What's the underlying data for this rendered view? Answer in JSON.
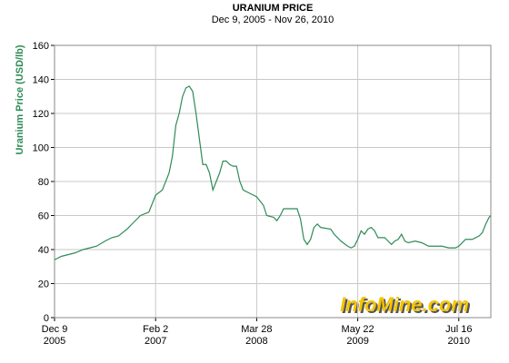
{
  "chart_data": {
    "type": "line",
    "title": "URANIUM PRICE",
    "subtitle": "Dec 9, 2005 - Nov 26, 2010",
    "y_label": "Uranium Price (USD/lb)",
    "watermark": "InfoMine.com",
    "grid": true,
    "xlim": [
      "2005-12-09",
      "2010-11-26"
    ],
    "xticks": [
      {
        "value": "2005-12-09",
        "label": [
          "Dec 9",
          "2005"
        ]
      },
      {
        "value": "2007-02-02",
        "label": [
          "Feb 2",
          "2007"
        ]
      },
      {
        "value": "2008-03-28",
        "label": [
          "Mar 28",
          "2008"
        ]
      },
      {
        "value": "2009-05-22",
        "label": [
          "May 22",
          "2009"
        ]
      },
      {
        "value": "2010-07-16",
        "label": [
          "Jul 16",
          "2010"
        ]
      }
    ],
    "ylim": [
      0,
      160
    ],
    "yticks": [
      0,
      20,
      40,
      60,
      80,
      100,
      120,
      140,
      160
    ],
    "series": [
      {
        "color": "#2e8b57",
        "x": [
          "2005-12-09",
          "2006-01-06",
          "2006-02-03",
          "2006-03-03",
          "2006-04-07",
          "2006-05-05",
          "2006-06-02",
          "2006-07-07",
          "2006-08-04",
          "2006-09-01",
          "2006-10-06",
          "2006-11-03",
          "2006-12-01",
          "2007-01-05",
          "2007-02-02",
          "2007-03-02",
          "2007-03-30",
          "2007-04-13",
          "2007-04-27",
          "2007-05-11",
          "2007-05-25",
          "2007-06-08",
          "2007-06-22",
          "2007-07-06",
          "2007-07-20",
          "2007-08-03",
          "2007-08-17",
          "2007-08-31",
          "2007-09-14",
          "2007-09-28",
          "2007-10-12",
          "2007-10-26",
          "2007-11-09",
          "2007-11-23",
          "2007-12-07",
          "2007-12-21",
          "2008-01-04",
          "2008-01-18",
          "2008-02-01",
          "2008-02-29",
          "2008-03-28",
          "2008-04-25",
          "2008-05-09",
          "2008-06-06",
          "2008-06-20",
          "2008-07-04",
          "2008-07-18",
          "2008-08-29",
          "2008-09-12",
          "2008-09-26",
          "2008-10-10",
          "2008-10-24",
          "2008-11-07",
          "2008-11-21",
          "2008-12-05",
          "2008-12-19",
          "2009-01-30",
          "2009-02-13",
          "2009-03-13",
          "2009-04-10",
          "2009-04-24",
          "2009-05-08",
          "2009-05-22",
          "2009-06-05",
          "2009-06-19",
          "2009-07-03",
          "2009-07-17",
          "2009-07-31",
          "2009-08-14",
          "2009-09-11",
          "2009-09-25",
          "2009-10-09",
          "2009-10-23",
          "2009-11-06",
          "2009-11-20",
          "2009-12-04",
          "2009-12-18",
          "2010-01-15",
          "2010-02-12",
          "2010-03-12",
          "2010-04-09",
          "2010-05-07",
          "2010-06-04",
          "2010-07-02",
          "2010-07-16",
          "2010-08-13",
          "2010-09-10",
          "2010-10-08",
          "2010-10-22",
          "2010-11-05",
          "2010-11-19",
          "2010-11-26"
        ],
        "values": [
          34,
          36,
          37,
          38,
          40,
          41,
          42,
          45,
          47,
          48,
          52,
          56,
          60,
          62,
          72,
          75,
          85,
          95,
          113,
          120,
          130,
          135,
          136,
          133,
          120,
          105,
          90,
          90,
          85,
          75,
          80,
          85,
          92,
          92,
          90,
          89,
          89,
          80,
          75,
          73,
          71,
          66,
          60,
          59,
          57,
          60,
          64,
          64,
          64,
          58,
          46,
          43,
          46,
          53,
          55,
          53,
          52,
          49,
          45,
          42,
          41,
          42,
          46,
          51,
          49,
          52,
          53,
          51,
          47,
          47,
          45,
          43,
          45,
          46,
          49,
          45,
          44,
          45,
          44,
          42,
          42,
          42,
          41,
          41,
          42,
          46,
          46,
          48,
          50,
          55,
          59,
          60
        ]
      }
    ]
  }
}
